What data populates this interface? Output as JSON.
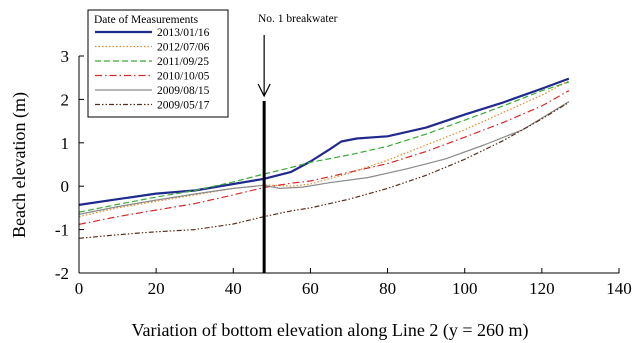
{
  "chart_data": {
    "type": "line",
    "xlabel": "Variation of bottom elevation along Line 2 (y = 260 m)",
    "ylabel": "Beach elevation (m)",
    "xlim": [
      0,
      140
    ],
    "ylim": [
      -2,
      3
    ],
    "xticks": [
      0,
      20,
      40,
      60,
      80,
      100,
      120,
      140
    ],
    "yticks": [
      -2,
      -1,
      0,
      1,
      2,
      3
    ],
    "grid": false,
    "legend": {
      "title": "Date of Measurements",
      "position": "top-left"
    },
    "annotation": {
      "text": "No. 1 breakwater",
      "x": 48
    },
    "series": [
      {
        "name": "2013/01/16",
        "color": "#1f2a8c",
        "dash": "",
        "width": 2.2,
        "points": [
          [
            0,
            -0.43
          ],
          [
            10,
            -0.3
          ],
          [
            20,
            -0.17
          ],
          [
            30,
            -0.1
          ],
          [
            40,
            0.05
          ],
          [
            48,
            0.17
          ],
          [
            55,
            0.33
          ],
          [
            60,
            0.57
          ],
          [
            65,
            0.85
          ],
          [
            68,
            1.03
          ],
          [
            72,
            1.1
          ],
          [
            80,
            1.15
          ],
          [
            90,
            1.35
          ],
          [
            100,
            1.65
          ],
          [
            110,
            1.93
          ],
          [
            120,
            2.25
          ],
          [
            127,
            2.48
          ]
        ]
      },
      {
        "name": "2012/07/06",
        "color": "#e8892a",
        "dash": "1.5,2",
        "width": 1.2,
        "points": [
          [
            0,
            -0.7
          ],
          [
            10,
            -0.5
          ],
          [
            20,
            -0.35
          ],
          [
            30,
            -0.2
          ],
          [
            40,
            -0.05
          ],
          [
            48,
            0.03
          ],
          [
            55,
            0.0
          ],
          [
            60,
            0.05
          ],
          [
            70,
            0.3
          ],
          [
            80,
            0.6
          ],
          [
            90,
            0.95
          ],
          [
            100,
            1.3
          ],
          [
            110,
            1.7
          ],
          [
            120,
            2.1
          ],
          [
            127,
            2.43
          ]
        ]
      },
      {
        "name": "2011/09/25",
        "color": "#3aaa3a",
        "dash": "6,3",
        "width": 1.2,
        "points": [
          [
            0,
            -0.6
          ],
          [
            10,
            -0.42
          ],
          [
            20,
            -0.25
          ],
          [
            30,
            -0.1
          ],
          [
            40,
            0.1
          ],
          [
            48,
            0.28
          ],
          [
            55,
            0.43
          ],
          [
            60,
            0.55
          ],
          [
            70,
            0.72
          ],
          [
            80,
            0.92
          ],
          [
            90,
            1.2
          ],
          [
            100,
            1.52
          ],
          [
            110,
            1.85
          ],
          [
            120,
            2.2
          ],
          [
            127,
            2.4
          ]
        ]
      },
      {
        "name": "2010/10/05",
        "color": "#d42a2a",
        "dash": "7,3,1.5,3",
        "width": 1.2,
        "points": [
          [
            0,
            -0.88
          ],
          [
            10,
            -0.7
          ],
          [
            20,
            -0.55
          ],
          [
            30,
            -0.4
          ],
          [
            40,
            -0.2
          ],
          [
            48,
            -0.03
          ],
          [
            55,
            0.07
          ],
          [
            60,
            0.12
          ],
          [
            70,
            0.32
          ],
          [
            80,
            0.52
          ],
          [
            90,
            0.8
          ],
          [
            100,
            1.13
          ],
          [
            110,
            1.47
          ],
          [
            120,
            1.85
          ],
          [
            127,
            2.2
          ]
        ]
      },
      {
        "name": "2009/08/15",
        "color": "#8a8a8a",
        "dash": "",
        "width": 1.2,
        "points": [
          [
            0,
            -0.65
          ],
          [
            10,
            -0.47
          ],
          [
            20,
            -0.32
          ],
          [
            30,
            -0.18
          ],
          [
            40,
            -0.05
          ],
          [
            48,
            0.02
          ],
          [
            52,
            -0.05
          ],
          [
            58,
            -0.02
          ],
          [
            65,
            0.08
          ],
          [
            75,
            0.2
          ],
          [
            85,
            0.4
          ],
          [
            95,
            0.63
          ],
          [
            105,
            0.95
          ],
          [
            115,
            1.3
          ],
          [
            127,
            1.95
          ]
        ]
      },
      {
        "name": "2009/05/17",
        "color": "#5a2d1c",
        "dash": "5,2,1.5,2,1.5,2",
        "width": 1.2,
        "points": [
          [
            0,
            -1.2
          ],
          [
            10,
            -1.12
          ],
          [
            17,
            -1.07
          ],
          [
            20,
            -1.05
          ],
          [
            30,
            -1.0
          ],
          [
            40,
            -0.87
          ],
          [
            48,
            -0.7
          ],
          [
            55,
            -0.57
          ],
          [
            60,
            -0.5
          ],
          [
            70,
            -0.3
          ],
          [
            80,
            -0.05
          ],
          [
            90,
            0.25
          ],
          [
            100,
            0.62
          ],
          [
            110,
            1.05
          ],
          [
            120,
            1.55
          ],
          [
            127,
            1.93
          ]
        ]
      }
    ]
  }
}
